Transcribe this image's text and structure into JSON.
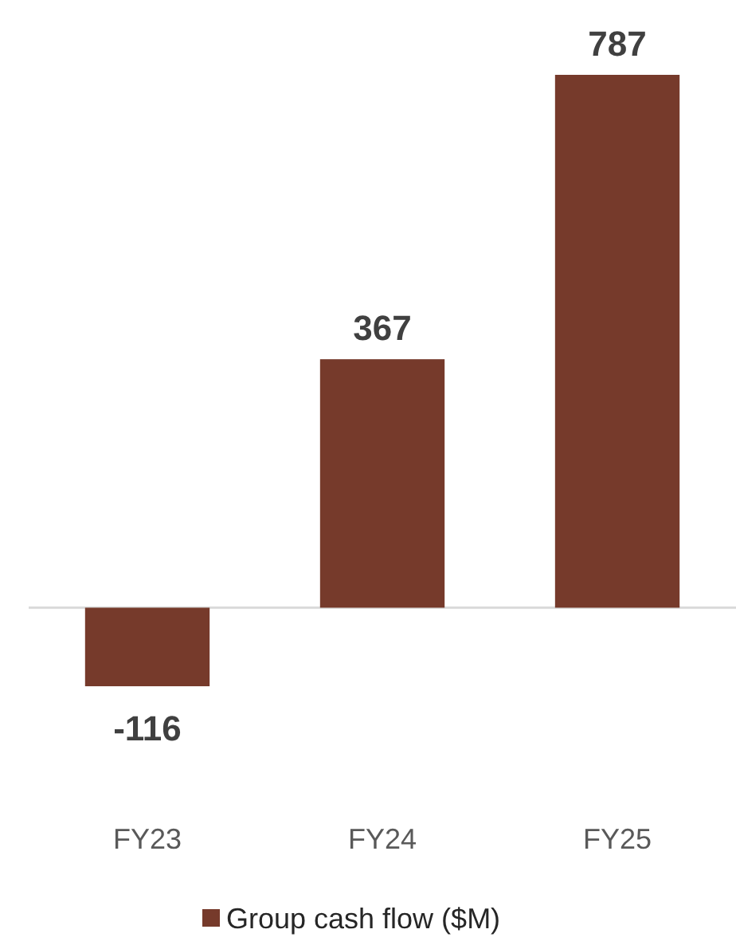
{
  "chart_data": {
    "type": "bar",
    "categories": [
      "FY23",
      "FY24",
      "FY25"
    ],
    "series": [
      {
        "name": "Group cash flow ($M)",
        "color": "#763a2b",
        "values": [
          -116,
          367,
          787
        ]
      }
    ],
    "data_labels": true,
    "legend": "bottom"
  }
}
